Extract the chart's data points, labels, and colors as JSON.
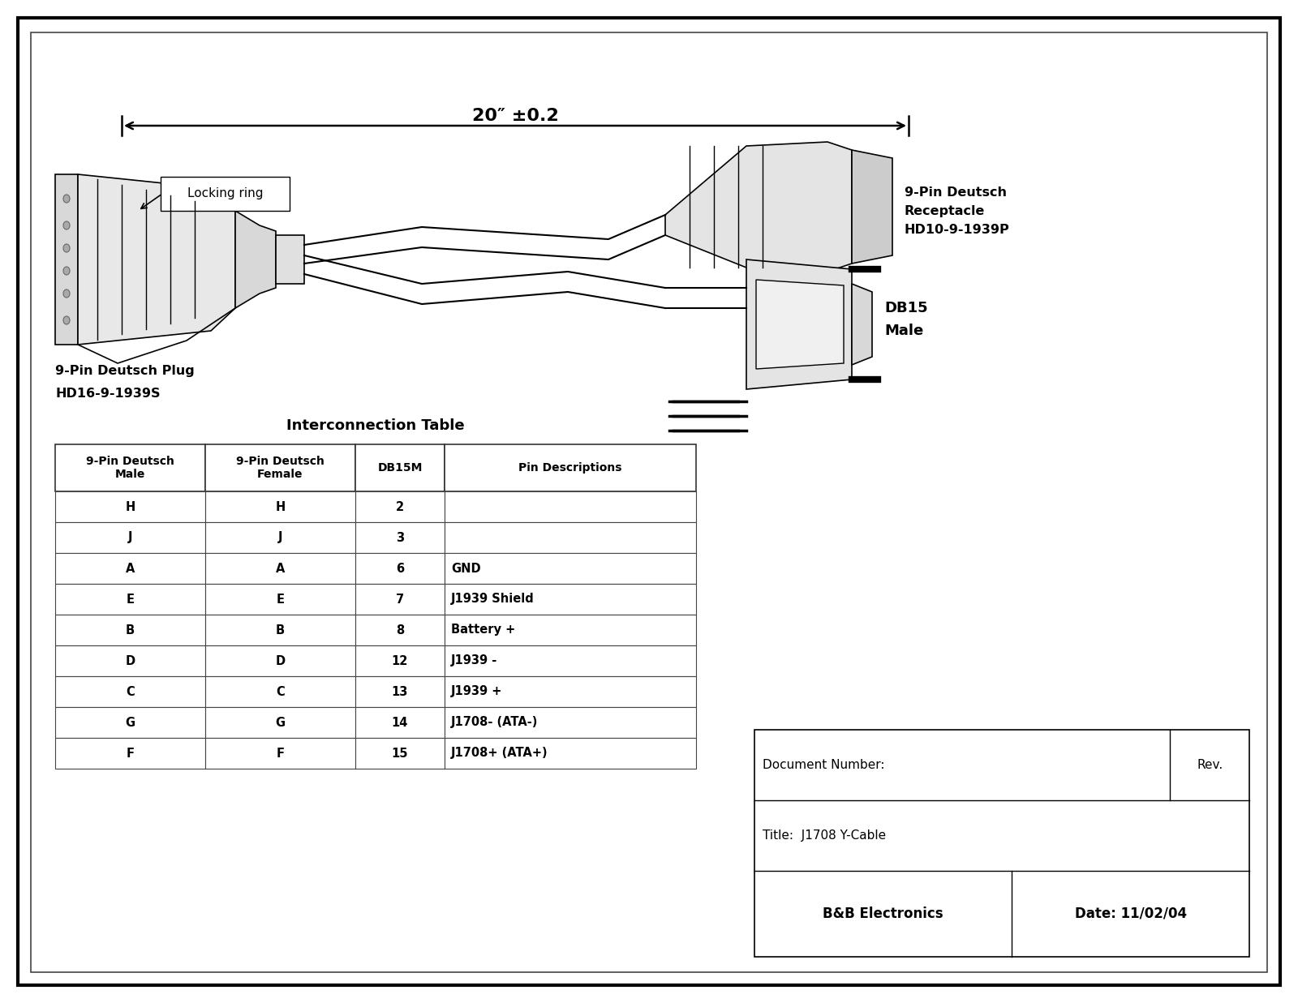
{
  "bg_color": "#ffffff",
  "dimension_label": "20″ ±0.2",
  "locking_ring_label": "Locking ring",
  "left_connector_label1": "9-Pin Deutsch Plug",
  "left_connector_label2": "HD16-9-1939S",
  "right_top_label1": "9-Pin Deutsch",
  "right_top_label2": "Receptacle",
  "right_top_label3": "HD10-9-1939P",
  "right_bottom_label1": "DB15",
  "right_bottom_label2": "Male",
  "table_title": "Interconnection Table",
  "table_headers": [
    "9-Pin Deutsch\nMale",
    "9-Pin Deutsch\nFemale",
    "DB15M",
    "Pin Descriptions"
  ],
  "table_rows": [
    [
      "H",
      "H",
      "2",
      ""
    ],
    [
      "J",
      "J",
      "3",
      ""
    ],
    [
      "A",
      "A",
      "6",
      "GND"
    ],
    [
      "E",
      "E",
      "7",
      "J1939 Shield"
    ],
    [
      "B",
      "B",
      "8",
      "Battery +"
    ],
    [
      "D",
      "D",
      "12",
      "J1939 -"
    ],
    [
      "C",
      "C",
      "13",
      "J1939 +"
    ],
    [
      "G",
      "G",
      "14",
      "J1708- (ATA-)"
    ],
    [
      "F",
      "F",
      "15",
      "J1708+ (ATA+)"
    ]
  ],
  "footer_company": "B&B Electronics",
  "footer_date_label": "Date: 11/02/04",
  "footer_title_label": "Title:  J1708 Y-Cable",
  "footer_doc_label": "Document Number:",
  "footer_rev_label": "Rev."
}
